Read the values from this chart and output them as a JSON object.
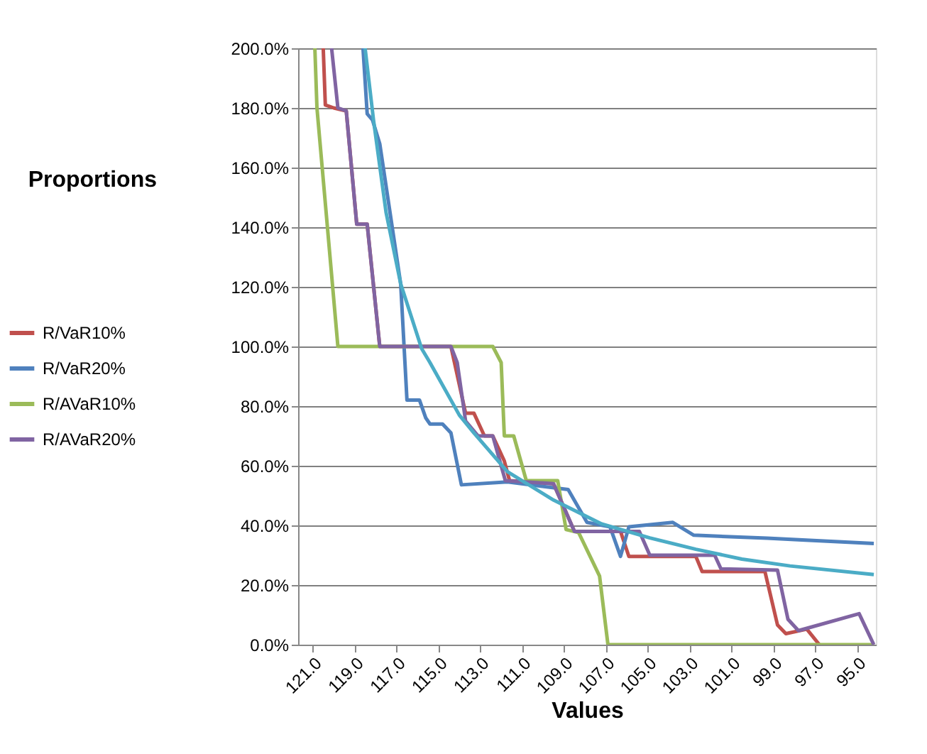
{
  "chart_data": {
    "type": "line",
    "xlabel": "Values",
    "ylabel": "Proportions",
    "xlim": [
      121.7,
      94.1
    ],
    "ylim": [
      0,
      200
    ],
    "xticks": [
      {
        "value": 121,
        "label": "121.0"
      },
      {
        "value": 119,
        "label": "119.0"
      },
      {
        "value": 117,
        "label": "117.0"
      },
      {
        "value": 115,
        "label": "115.0"
      },
      {
        "value": 113,
        "label": "113.0"
      },
      {
        "value": 111,
        "label": "111.0"
      },
      {
        "value": 109,
        "label": "109.0"
      },
      {
        "value": 107,
        "label": "107.0"
      },
      {
        "value": 105,
        "label": "105.0"
      },
      {
        "value": 103,
        "label": "103.0"
      },
      {
        "value": 101,
        "label": "101.0"
      },
      {
        "value": 99,
        "label": "99.0"
      },
      {
        "value": 97,
        "label": "97.0"
      },
      {
        "value": 95,
        "label": "95.0"
      }
    ],
    "yticks": [
      {
        "value": 0,
        "label": "0.0%"
      },
      {
        "value": 20,
        "label": "20.0%"
      },
      {
        "value": 40,
        "label": "40.0%"
      },
      {
        "value": 60,
        "label": "60.0%"
      },
      {
        "value": 80,
        "label": "80.0%"
      },
      {
        "value": 100,
        "label": "100.0%"
      },
      {
        "value": 120,
        "label": "120.0%"
      },
      {
        "value": 140,
        "label": "140.0%"
      },
      {
        "value": 160,
        "label": "160.0%"
      },
      {
        "value": 180,
        "label": "180.0%"
      },
      {
        "value": 200,
        "label": "200.0%"
      }
    ],
    "grid": "y",
    "legend": "left",
    "series": [
      {
        "name": "R/VaR10%",
        "color": "#c0504d",
        "x": [
          120.5,
          120.4,
          120.0,
          119.4,
          118.9,
          118.4,
          117.8,
          114.4,
          113.7,
          113.3,
          112.8,
          112.4,
          111.85,
          111.6,
          109.5,
          108.5,
          106.3,
          105.9,
          102.7,
          102.4,
          99.4,
          98.8,
          98.4,
          97.4,
          96.8
        ],
        "values": [
          200,
          181,
          180,
          179,
          141,
          141,
          100,
          100,
          77.6,
          77.6,
          70,
          70,
          61.6,
          55,
          54,
          38,
          38,
          29.6,
          29.6,
          24.5,
          24.5,
          6.6,
          3.7,
          5.2,
          0
        ]
      },
      {
        "name": "R/VaR20%",
        "color": "#4f81bd",
        "x": [
          118.6,
          118.4,
          118.15,
          117.8,
          116.8,
          116.5,
          115.9,
          115.6,
          115.4,
          114.8,
          114.4,
          113.9,
          111.7,
          108.8,
          107.9,
          106.8,
          106.3,
          105.9,
          103.8,
          102.8,
          99.3,
          94.2
        ],
        "values": [
          200,
          178,
          176,
          168,
          121,
          82,
          82,
          76,
          74,
          74,
          71,
          53.6,
          54.6,
          52,
          41,
          39.5,
          29.6,
          39.5,
          41,
          36.7,
          35.7,
          33.9
        ]
      },
      {
        "name": "R/AVaR10%",
        "color": "#9bbb59",
        "x": [
          120.9,
          120.8,
          119.8,
          112.4,
          112.0,
          111.85,
          111.4,
          110.8,
          109.3,
          108.9,
          108.3,
          107.3,
          106.9,
          94.2
        ],
        "values": [
          200,
          180,
          100,
          100,
          94.6,
          70,
          70,
          55,
          55,
          38.6,
          37.6,
          23,
          0,
          0
        ]
      },
      {
        "name": "R/AVaR20%",
        "color": "#8064a2",
        "x": [
          120.1,
          119.8,
          119.4,
          118.9,
          118.4,
          117.8,
          114.4,
          114.1,
          113.7,
          113.1,
          112.4,
          111.8,
          109.5,
          108.5,
          105.4,
          104.9,
          101.8,
          101.5,
          98.8,
          98.3,
          97.8,
          94.9,
          94.2
        ],
        "values": [
          200,
          180,
          179,
          141,
          141,
          100,
          100,
          94.6,
          75,
          70,
          70,
          55,
          54,
          38,
          38,
          30,
          30,
          25.4,
          25,
          8.5,
          4.7,
          10.4,
          0
        ]
      },
      {
        "color": "#4bacc6",
        "x": [
          118.5,
          118.1,
          117.5,
          116.8,
          115.8,
          115.4,
          114.0,
          113.3,
          111.7,
          109.5,
          107.2,
          104.9,
          102.7,
          100.5,
          98.2,
          94.2
        ],
        "values": [
          200,
          176,
          145,
          121,
          99.3,
          94.6,
          77,
          71,
          58,
          48.5,
          40.5,
          35.8,
          32,
          28.7,
          26.4,
          23.5
        ]
      }
    ]
  }
}
